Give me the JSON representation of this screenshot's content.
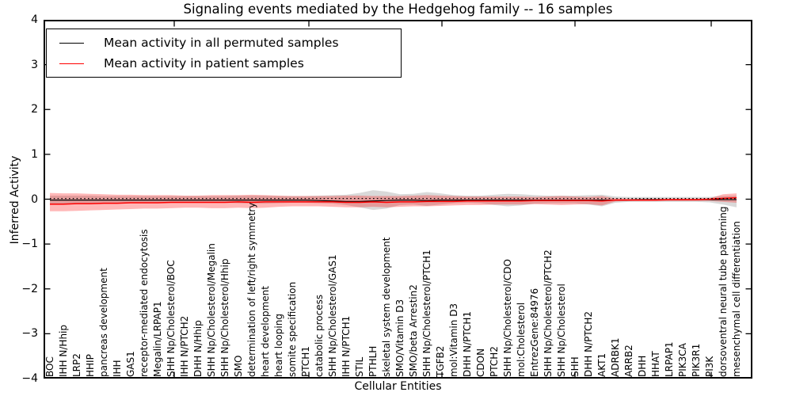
{
  "title": "Signaling events mediated by the Hedgehog family -- 16 samples",
  "axes": {
    "ylabel": "Inferred Activity",
    "xlabel": "Cellular Entities",
    "yticks": [
      "4",
      "3",
      "2",
      "1",
      "0",
      "−1",
      "−2",
      "−3",
      "−4"
    ],
    "ylim": [
      -4,
      4
    ],
    "grid": false,
    "background": "#ffffff",
    "spine_color": "#000000"
  },
  "legend": {
    "position": "upper left",
    "items": [
      {
        "label": "Mean activity in all permuted samples",
        "color": "#000000"
      },
      {
        "label": "Mean activity in patient samples",
        "color": "#ff0000"
      }
    ]
  },
  "chart_data": {
    "type": "line",
    "title": "Signaling events mediated by the Hedgehog family -- 16 samples",
    "xlabel": "Cellular Entities",
    "ylabel": "Inferred Activity",
    "ylim": [
      -4,
      4
    ],
    "legend_position": "upper left",
    "categories": [
      "BOC",
      "IHH N/Hhip",
      "LRP2",
      "HHIP",
      "pancreas development",
      "IHH",
      "GAS1",
      "receptor-mediated endocytosis",
      "Megalin/LRPAP1",
      "SHH Np/Cholesterol/BOC",
      "IHH N/PTCH2",
      "DHH N/Hhip",
      "SHH Np/Cholesterol/Megalin",
      "SHH Np/Cholesterol/Hhip",
      "SMO",
      "determination of left/right symmetry",
      "heart development",
      "heart looping",
      "somite specification",
      "PTCH1",
      "catabolic process",
      "SHH Np/Cholesterol/GAS1",
      "IHH N/PTCH1",
      "STIL",
      "PTHLH",
      "skeletal system development",
      "SMO/Vitamin D3",
      "SMO/beta Arrestin2",
      "SHH Np/Cholesterol/PTCH1",
      "TGFB2",
      "mol:Vitamin D3",
      "DHH N/PTCH1",
      "CDON",
      "PTCH2",
      "SHH Np/Cholesterol/CDO",
      "mol:Cholesterol",
      "EntrezGene:84976",
      "SHH Np/Cholesterol/PTCH2",
      "SHH Np/Cholesterol",
      "SHH",
      "DHH N/PTCH2",
      "AKT1",
      "ADRBK1",
      "ARRB2",
      "DHH",
      "HHAT",
      "LRPAP1",
      "PIK3CA",
      "PIK3R1",
      "PI3K",
      "dorsoventral neural tube patterning",
      "mesenchymal cell differentiation"
    ],
    "series": [
      {
        "name": "Mean activity in all permuted samples",
        "color": "#000000",
        "style": "solid",
        "values": [
          -0.02,
          -0.02,
          -0.02,
          -0.02,
          -0.02,
          -0.02,
          -0.02,
          -0.02,
          -0.02,
          -0.02,
          -0.02,
          -0.02,
          -0.02,
          -0.02,
          -0.02,
          -0.02,
          -0.02,
          -0.02,
          -0.02,
          -0.02,
          -0.03,
          -0.04,
          -0.05,
          -0.05,
          -0.04,
          -0.03,
          -0.02,
          -0.02,
          -0.03,
          -0.02,
          -0.02,
          -0.02,
          -0.02,
          -0.02,
          -0.02,
          -0.02,
          -0.02,
          -0.02,
          -0.02,
          -0.02,
          -0.02,
          -0.02,
          -0.02,
          -0.02,
          -0.01,
          -0.01,
          -0.01,
          -0.01,
          -0.01,
          -0.01,
          -0.01,
          -0.01
        ]
      },
      {
        "name": "Mean activity in patient samples",
        "color": "#ff0000",
        "style": "solid",
        "values": [
          -0.11,
          -0.11,
          -0.1,
          -0.1,
          -0.09,
          -0.09,
          -0.08,
          -0.08,
          -0.08,
          -0.07,
          -0.07,
          -0.07,
          -0.07,
          -0.07,
          -0.06,
          -0.07,
          -0.06,
          -0.06,
          -0.06,
          -0.06,
          -0.06,
          -0.06,
          -0.07,
          -0.07,
          -0.06,
          -0.07,
          -0.06,
          -0.06,
          -0.05,
          -0.05,
          -0.05,
          -0.04,
          -0.04,
          -0.04,
          -0.04,
          -0.04,
          -0.03,
          -0.03,
          -0.03,
          -0.03,
          -0.03,
          -0.04,
          -0.02,
          -0.02,
          -0.02,
          -0.02,
          -0.01,
          -0.01,
          -0.01,
          0.0,
          0.02,
          0.03
        ]
      }
    ],
    "bands": [
      {
        "name": "permuted-samples-std-band",
        "color": "#888888",
        "opacity": 0.32,
        "upper": [
          0.08,
          0.08,
          0.08,
          0.08,
          0.07,
          0.07,
          0.07,
          0.07,
          0.07,
          0.07,
          0.07,
          0.07,
          0.07,
          0.07,
          0.08,
          0.08,
          0.08,
          0.07,
          0.07,
          0.07,
          0.08,
          0.09,
          0.1,
          0.14,
          0.2,
          0.17,
          0.11,
          0.12,
          0.16,
          0.13,
          0.09,
          0.08,
          0.08,
          0.1,
          0.12,
          0.11,
          0.09,
          0.08,
          0.08,
          0.08,
          0.09,
          0.1,
          0.06,
          0.05,
          0.05,
          0.05,
          0.05,
          0.05,
          0.05,
          0.05,
          0.07,
          0.08
        ],
        "lower": [
          -0.1,
          -0.1,
          -0.09,
          -0.09,
          -0.09,
          -0.08,
          -0.08,
          -0.08,
          -0.08,
          -0.08,
          -0.08,
          -0.08,
          -0.08,
          -0.08,
          -0.09,
          -0.1,
          -0.1,
          -0.09,
          -0.08,
          -0.08,
          -0.09,
          -0.1,
          -0.13,
          -0.18,
          -0.24,
          -0.21,
          -0.13,
          -0.12,
          -0.15,
          -0.12,
          -0.09,
          -0.08,
          -0.09,
          -0.13,
          -0.16,
          -0.14,
          -0.1,
          -0.09,
          -0.09,
          -0.09,
          -0.12,
          -0.16,
          -0.08,
          -0.06,
          -0.06,
          -0.06,
          -0.06,
          -0.06,
          -0.06,
          -0.07,
          -0.12,
          -0.18
        ]
      },
      {
        "name": "patient-samples-std-band",
        "color": "#ff0000",
        "opacity": 0.28,
        "upper": [
          0.14,
          0.13,
          0.13,
          0.12,
          0.11,
          0.1,
          0.1,
          0.09,
          0.09,
          0.09,
          0.08,
          0.08,
          0.09,
          0.09,
          0.09,
          0.1,
          0.09,
          0.08,
          0.07,
          0.07,
          0.07,
          0.07,
          0.08,
          0.08,
          0.07,
          0.07,
          0.07,
          0.08,
          0.09,
          0.08,
          0.07,
          0.06,
          0.06,
          0.06,
          0.06,
          0.06,
          0.05,
          0.06,
          0.07,
          0.06,
          0.05,
          0.07,
          0.02,
          0.01,
          0.01,
          0.01,
          0.01,
          0.01,
          0.01,
          0.02,
          0.11,
          0.13
        ],
        "lower": [
          -0.27,
          -0.27,
          -0.26,
          -0.25,
          -0.24,
          -0.23,
          -0.22,
          -0.21,
          -0.21,
          -0.2,
          -0.19,
          -0.19,
          -0.2,
          -0.2,
          -0.19,
          -0.2,
          -0.19,
          -0.17,
          -0.16,
          -0.16,
          -0.16,
          -0.17,
          -0.18,
          -0.18,
          -0.17,
          -0.18,
          -0.17,
          -0.16,
          -0.16,
          -0.15,
          -0.14,
          -0.13,
          -0.13,
          -0.12,
          -0.12,
          -0.12,
          -0.11,
          -0.12,
          -0.13,
          -0.12,
          -0.11,
          -0.14,
          -0.05,
          -0.04,
          -0.04,
          -0.04,
          -0.04,
          -0.04,
          -0.04,
          -0.04,
          -0.06,
          -0.08
        ]
      }
    ],
    "reference_line": {
      "name": "zero-dotted-line",
      "style": "dotted",
      "color": "#000000",
      "value": 0.015
    }
  }
}
